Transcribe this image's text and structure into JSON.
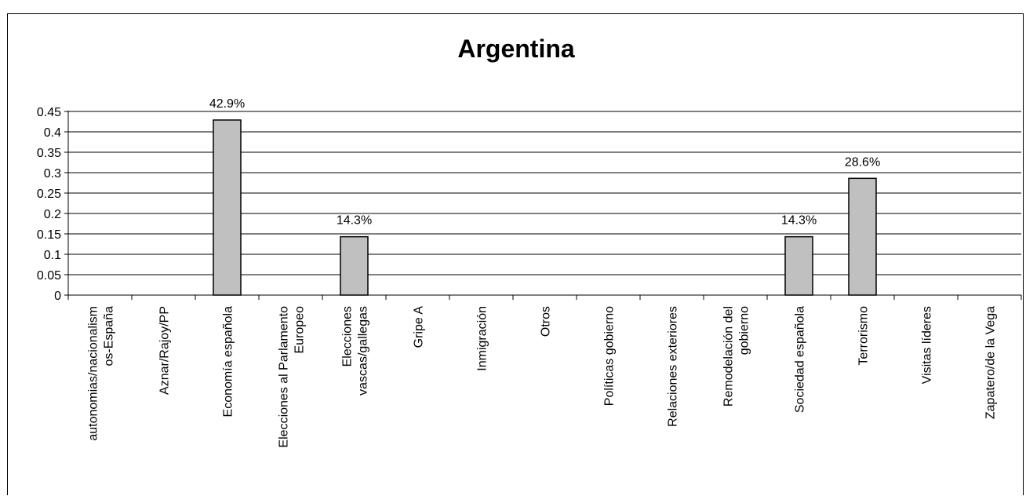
{
  "chart_data": {
    "type": "bar",
    "title": "Argentina",
    "xlabel": "",
    "ylabel": "",
    "categories": [
      "autonomias/nacionalismos-España",
      "Aznar/Rajoy/PP",
      "Economía española",
      "Elecciones al Parlamento Europeo",
      "Elecciones vascas/gallegas",
      "Gripe A",
      "Inmigración",
      "Otros",
      "Políticas gobierno",
      "Relaciones exteriores",
      "Remodelación del gobierno",
      "Sociedad española",
      "Terrorismo",
      "Visitas líderes",
      "Zapatero/de la Vega"
    ],
    "category_label_lines": [
      [
        "autonomias/nacionalism",
        "os-España"
      ],
      [
        "Aznar/Rajoy/PP"
      ],
      [
        "Economía española"
      ],
      [
        "Elecciones al Parlamento",
        "Europeo"
      ],
      [
        "Elecciones",
        "vascas/gallegas"
      ],
      [
        "Gripe A"
      ],
      [
        "Inmigración"
      ],
      [
        "Otros"
      ],
      [
        "Políticas gobierno"
      ],
      [
        "Relaciones exteriores"
      ],
      [
        "Remodelación del",
        "gobierno"
      ],
      [
        "Sociedad española"
      ],
      [
        "Terrorismo"
      ],
      [
        "Visitas líderes"
      ],
      [
        "Zapatero/de la Vega"
      ]
    ],
    "values": [
      0,
      0,
      0.429,
      0,
      0.143,
      0,
      0,
      0,
      0,
      0,
      0,
      0.143,
      0.286,
      0,
      0
    ],
    "data_labels": [
      "",
      "",
      "42.9%",
      "",
      "14.3%",
      "",
      "",
      "",
      "",
      "",
      "",
      "14.3%",
      "28.6%",
      "",
      ""
    ],
    "ylim": [
      0,
      0.45
    ],
    "yticks": [
      "0",
      "0.05",
      "0.1",
      "0.15",
      "0.2",
      "0.25",
      "0.3",
      "0.35",
      "0.4",
      "0.45"
    ],
    "grid": true,
    "legend": "none",
    "colors": {
      "bar_fill": "#c0c0c0",
      "bar_stroke": "#000000",
      "grid": "#000000"
    }
  }
}
